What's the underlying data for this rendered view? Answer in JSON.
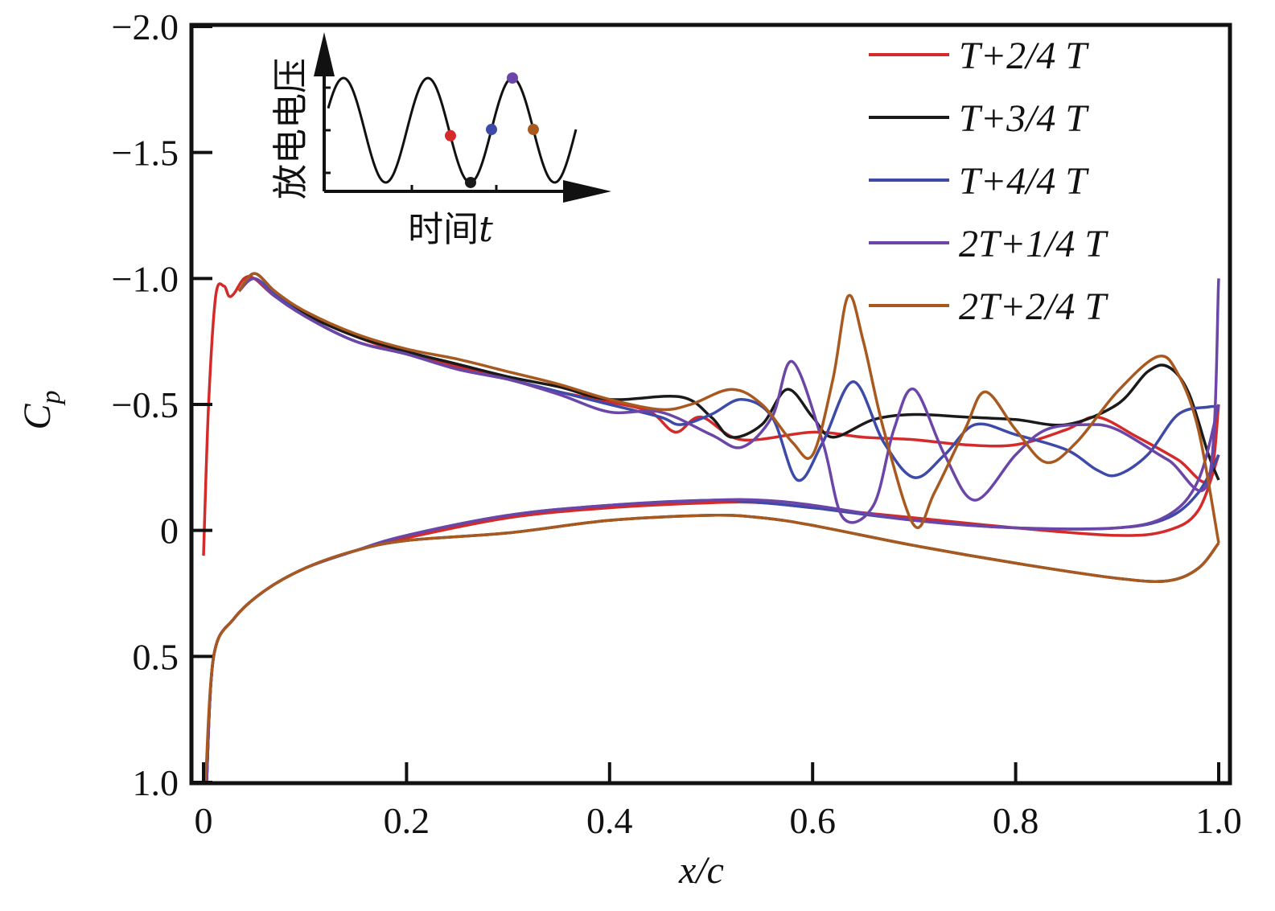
{
  "chart_data": {
    "type": "line",
    "title": "",
    "xlabel": "x/c",
    "ylabel": "Cp",
    "ylabel_main": "C",
    "ylabel_sub": "p",
    "xlim": [
      0,
      1.0
    ],
    "ylim": [
      1.0,
      -2.0
    ],
    "y_inverted": true,
    "grid": false,
    "legend_position": "top-right",
    "x_ticks": [
      0,
      0.2,
      0.4,
      0.6,
      0.8,
      1.0
    ],
    "x_tick_labels": [
      "0",
      "0.2",
      "0.4",
      "0.6",
      "0.8",
      "1.0"
    ],
    "y_ticks": [
      -2.0,
      -1.5,
      -1.0,
      -0.5,
      0,
      0.5,
      1.0
    ],
    "y_tick_labels": [
      "−2.0",
      "−1.5",
      "−1.0",
      "−0.5",
      "0",
      "0.5",
      "1.0"
    ],
    "series": [
      {
        "name": "T+2/4 T",
        "color": "#d42a2a",
        "upper": [
          [
            0,
            0.1
          ],
          [
            0.005,
            -0.5
          ],
          [
            0.012,
            -0.93
          ],
          [
            0.02,
            -0.97
          ],
          [
            0.025,
            -0.93
          ],
          [
            0.03,
            -0.94
          ],
          [
            0.04,
            -1.0
          ],
          [
            0.05,
            -1.0
          ],
          [
            0.07,
            -0.93
          ],
          [
            0.1,
            -0.86
          ],
          [
            0.15,
            -0.77
          ],
          [
            0.2,
            -0.7
          ],
          [
            0.25,
            -0.65
          ],
          [
            0.3,
            -0.6
          ],
          [
            0.35,
            -0.55
          ],
          [
            0.4,
            -0.51
          ],
          [
            0.44,
            -0.47
          ],
          [
            0.465,
            -0.39
          ],
          [
            0.49,
            -0.45
          ],
          [
            0.53,
            -0.36
          ],
          [
            0.6,
            -0.39
          ],
          [
            0.65,
            -0.37
          ],
          [
            0.7,
            -0.36
          ],
          [
            0.75,
            -0.34
          ],
          [
            0.8,
            -0.34
          ],
          [
            0.85,
            -0.4
          ],
          [
            0.88,
            -0.45
          ],
          [
            0.92,
            -0.37
          ],
          [
            0.96,
            -0.28
          ],
          [
            0.99,
            -0.2
          ],
          [
            1.0,
            -0.5
          ]
        ],
        "lower": [
          [
            0.003,
            1.0
          ],
          [
            0.01,
            0.5
          ],
          [
            0.03,
            0.35
          ],
          [
            0.06,
            0.24
          ],
          [
            0.1,
            0.15
          ],
          [
            0.15,
            0.08
          ],
          [
            0.2,
            0.03
          ],
          [
            0.3,
            -0.05
          ],
          [
            0.4,
            -0.09
          ],
          [
            0.5,
            -0.11
          ],
          [
            0.55,
            -0.11
          ],
          [
            0.6,
            -0.09
          ],
          [
            0.7,
            -0.05
          ],
          [
            0.8,
            -0.01
          ],
          [
            0.9,
            0.02
          ],
          [
            0.95,
            0.0
          ],
          [
            0.98,
            -0.08
          ],
          [
            1.0,
            -0.3
          ]
        ]
      },
      {
        "name": "T+3/4 T",
        "color": "#1a1a1a",
        "upper": [
          [
            0.035,
            -0.95
          ],
          [
            0.05,
            -1.02
          ],
          [
            0.07,
            -0.95
          ],
          [
            0.1,
            -0.86
          ],
          [
            0.15,
            -0.77
          ],
          [
            0.2,
            -0.71
          ],
          [
            0.25,
            -0.66
          ],
          [
            0.3,
            -0.61
          ],
          [
            0.35,
            -0.57
          ],
          [
            0.4,
            -0.52
          ],
          [
            0.47,
            -0.53
          ],
          [
            0.5,
            -0.45
          ],
          [
            0.52,
            -0.37
          ],
          [
            0.55,
            -0.42
          ],
          [
            0.575,
            -0.56
          ],
          [
            0.6,
            -0.45
          ],
          [
            0.62,
            -0.37
          ],
          [
            0.66,
            -0.44
          ],
          [
            0.7,
            -0.46
          ],
          [
            0.75,
            -0.45
          ],
          [
            0.8,
            -0.44
          ],
          [
            0.85,
            -0.42
          ],
          [
            0.9,
            -0.5
          ],
          [
            0.93,
            -0.63
          ],
          [
            0.95,
            -0.65
          ],
          [
            0.97,
            -0.55
          ],
          [
            0.99,
            -0.3
          ],
          [
            1.0,
            -0.2
          ]
        ],
        "lower": [
          [
            0.003,
            1.0
          ],
          [
            0.01,
            0.5
          ],
          [
            0.03,
            0.35
          ],
          [
            0.06,
            0.24
          ],
          [
            0.1,
            0.15
          ],
          [
            0.15,
            0.08
          ],
          [
            0.2,
            0.04
          ],
          [
            0.3,
            0.01
          ],
          [
            0.4,
            -0.04
          ],
          [
            0.5,
            -0.06
          ],
          [
            0.55,
            -0.05
          ],
          [
            0.6,
            -0.02
          ],
          [
            0.7,
            0.06
          ],
          [
            0.8,
            0.13
          ],
          [
            0.9,
            0.19
          ],
          [
            0.95,
            0.2
          ],
          [
            0.98,
            0.15
          ],
          [
            1.0,
            0.05
          ]
        ]
      },
      {
        "name": "T+4/4 T",
        "color": "#3d4aa8",
        "upper": [
          [
            0.035,
            -0.95
          ],
          [
            0.05,
            -1.0
          ],
          [
            0.07,
            -0.94
          ],
          [
            0.1,
            -0.85
          ],
          [
            0.15,
            -0.75
          ],
          [
            0.2,
            -0.7
          ],
          [
            0.25,
            -0.64
          ],
          [
            0.3,
            -0.6
          ],
          [
            0.35,
            -0.55
          ],
          [
            0.4,
            -0.5
          ],
          [
            0.45,
            -0.45
          ],
          [
            0.47,
            -0.42
          ],
          [
            0.5,
            -0.46
          ],
          [
            0.53,
            -0.52
          ],
          [
            0.56,
            -0.45
          ],
          [
            0.585,
            -0.2
          ],
          [
            0.61,
            -0.35
          ],
          [
            0.64,
            -0.59
          ],
          [
            0.67,
            -0.35
          ],
          [
            0.7,
            -0.21
          ],
          [
            0.73,
            -0.3
          ],
          [
            0.76,
            -0.42
          ],
          [
            0.8,
            -0.38
          ],
          [
            0.85,
            -0.32
          ],
          [
            0.88,
            -0.24
          ],
          [
            0.9,
            -0.22
          ],
          [
            0.93,
            -0.3
          ],
          [
            0.96,
            -0.46
          ],
          [
            0.99,
            -0.49
          ],
          [
            1.0,
            -0.49
          ]
        ],
        "lower": [
          [
            0.003,
            1.0
          ],
          [
            0.01,
            0.5
          ],
          [
            0.03,
            0.35
          ],
          [
            0.06,
            0.24
          ],
          [
            0.1,
            0.15
          ],
          [
            0.15,
            0.08
          ],
          [
            0.2,
            0.02
          ],
          [
            0.3,
            -0.06
          ],
          [
            0.4,
            -0.1
          ],
          [
            0.5,
            -0.12
          ],
          [
            0.55,
            -0.11
          ],
          [
            0.6,
            -0.09
          ],
          [
            0.7,
            -0.04
          ],
          [
            0.8,
            -0.01
          ],
          [
            0.9,
            -0.01
          ],
          [
            0.95,
            -0.05
          ],
          [
            0.98,
            -0.15
          ],
          [
            1.0,
            -0.3
          ]
        ]
      },
      {
        "name": "2T+1/4 T",
        "color": "#6b45a8",
        "upper": [
          [
            0.035,
            -0.95
          ],
          [
            0.05,
            -1.0
          ],
          [
            0.07,
            -0.93
          ],
          [
            0.1,
            -0.85
          ],
          [
            0.15,
            -0.75
          ],
          [
            0.2,
            -0.7
          ],
          [
            0.25,
            -0.64
          ],
          [
            0.3,
            -0.6
          ],
          [
            0.35,
            -0.54
          ],
          [
            0.4,
            -0.47
          ],
          [
            0.45,
            -0.47
          ],
          [
            0.5,
            -0.38
          ],
          [
            0.53,
            -0.33
          ],
          [
            0.56,
            -0.45
          ],
          [
            0.58,
            -0.67
          ],
          [
            0.61,
            -0.35
          ],
          [
            0.63,
            -0.05
          ],
          [
            0.66,
            -0.1
          ],
          [
            0.68,
            -0.4
          ],
          [
            0.7,
            -0.56
          ],
          [
            0.73,
            -0.3
          ],
          [
            0.76,
            -0.12
          ],
          [
            0.8,
            -0.3
          ],
          [
            0.83,
            -0.4
          ],
          [
            0.87,
            -0.42
          ],
          [
            0.9,
            -0.4
          ],
          [
            0.95,
            -0.28
          ],
          [
            0.99,
            -0.2
          ],
          [
            1.0,
            -1.0
          ]
        ],
        "lower": [
          [
            0.003,
            1.0
          ],
          [
            0.01,
            0.5
          ],
          [
            0.03,
            0.35
          ],
          [
            0.06,
            0.24
          ],
          [
            0.1,
            0.15
          ],
          [
            0.15,
            0.08
          ],
          [
            0.2,
            0.02
          ],
          [
            0.3,
            -0.06
          ],
          [
            0.4,
            -0.1
          ],
          [
            0.5,
            -0.12
          ],
          [
            0.55,
            -0.12
          ],
          [
            0.6,
            -0.1
          ],
          [
            0.7,
            -0.04
          ],
          [
            0.8,
            -0.01
          ],
          [
            0.9,
            -0.01
          ],
          [
            0.95,
            -0.06
          ],
          [
            0.98,
            -0.2
          ],
          [
            1.0,
            -0.5
          ]
        ]
      },
      {
        "name": "2T+2/4 T",
        "color": "#a8591f",
        "upper": [
          [
            0.035,
            -0.95
          ],
          [
            0.05,
            -1.02
          ],
          [
            0.07,
            -0.95
          ],
          [
            0.1,
            -0.87
          ],
          [
            0.15,
            -0.78
          ],
          [
            0.2,
            -0.72
          ],
          [
            0.25,
            -0.68
          ],
          [
            0.3,
            -0.63
          ],
          [
            0.35,
            -0.58
          ],
          [
            0.4,
            -0.52
          ],
          [
            0.45,
            -0.48
          ],
          [
            0.48,
            -0.5
          ],
          [
            0.52,
            -0.56
          ],
          [
            0.55,
            -0.5
          ],
          [
            0.58,
            -0.35
          ],
          [
            0.6,
            -0.3
          ],
          [
            0.62,
            -0.6
          ],
          [
            0.635,
            -0.93
          ],
          [
            0.65,
            -0.75
          ],
          [
            0.67,
            -0.4
          ],
          [
            0.7,
            -0.02
          ],
          [
            0.72,
            -0.15
          ],
          [
            0.75,
            -0.4
          ],
          [
            0.77,
            -0.55
          ],
          [
            0.8,
            -0.4
          ],
          [
            0.83,
            -0.27
          ],
          [
            0.86,
            -0.35
          ],
          [
            0.9,
            -0.55
          ],
          [
            0.94,
            -0.69
          ],
          [
            0.96,
            -0.62
          ],
          [
            0.98,
            -0.4
          ],
          [
            1.0,
            0.05
          ]
        ],
        "lower": [
          [
            0.002,
            1.0
          ],
          [
            0.01,
            0.5
          ],
          [
            0.03,
            0.35
          ],
          [
            0.06,
            0.24
          ],
          [
            0.1,
            0.15
          ],
          [
            0.15,
            0.08
          ],
          [
            0.2,
            0.04
          ],
          [
            0.3,
            0.01
          ],
          [
            0.4,
            -0.04
          ],
          [
            0.5,
            -0.06
          ],
          [
            0.55,
            -0.05
          ],
          [
            0.6,
            -0.02
          ],
          [
            0.7,
            0.06
          ],
          [
            0.8,
            0.13
          ],
          [
            0.9,
            0.19
          ],
          [
            0.95,
            0.2
          ],
          [
            0.98,
            0.15
          ],
          [
            1.0,
            0.05
          ]
        ]
      }
    ],
    "inset": {
      "ylabel": "放电电压",
      "xlabel_text": "时间",
      "xlabel_var": "t",
      "markers": [
        {
          "phase": "T+2/4 T",
          "color": "#d42a2a"
        },
        {
          "phase": "T+3/4 T",
          "color": "#1a1a1a"
        },
        {
          "phase": "T+4/4 T",
          "color": "#3d4aa8"
        },
        {
          "phase": "2T+1/4 T",
          "color": "#6b45a8"
        },
        {
          "phase": "2T+2/4 T",
          "color": "#a8591f"
        }
      ]
    }
  }
}
